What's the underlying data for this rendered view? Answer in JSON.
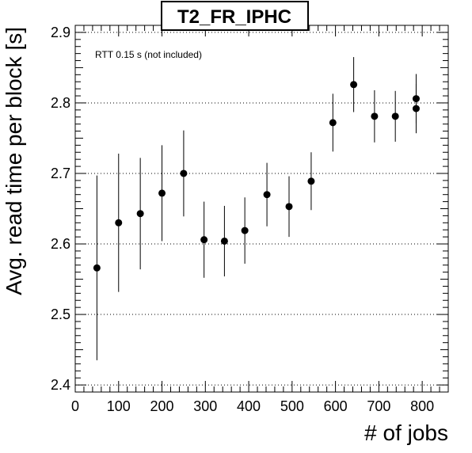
{
  "chart_data": {
    "type": "scatter",
    "title": "T2_FR_IPHC",
    "xlabel": "# of jobs",
    "ylabel": "Avg. read time per block [s]",
    "annotation": "RTT 0.15 s (not included)",
    "xlim": [
      0,
      860
    ],
    "ylim": [
      2.39,
      2.91
    ],
    "x_ticks": [
      0,
      100,
      200,
      300,
      400,
      500,
      600,
      700,
      800
    ],
    "y_ticks": [
      2.4,
      2.5,
      2.6,
      2.7,
      2.8,
      2.9
    ],
    "x_tick_labels": [
      "0",
      "100",
      "200",
      "300",
      "400",
      "500",
      "600",
      "700",
      "800"
    ],
    "y_tick_labels": [
      "2.4",
      "2.5",
      "2.6",
      "2.7",
      "2.8",
      "2.9"
    ],
    "grid": "horizontal dotted",
    "marker_color": "#000000",
    "points": [
      {
        "x": 50,
        "y": 2.566,
        "err": 0.131
      },
      {
        "x": 100,
        "y": 2.63,
        "err": 0.098
      },
      {
        "x": 150,
        "y": 2.643,
        "err": 0.079
      },
      {
        "x": 200,
        "y": 2.672,
        "err": 0.068
      },
      {
        "x": 250,
        "y": 2.7,
        "err": 0.061
      },
      {
        "x": 297,
        "y": 2.606,
        "err": 0.054
      },
      {
        "x": 344,
        "y": 2.604,
        "err": 0.05
      },
      {
        "x": 391,
        "y": 2.619,
        "err": 0.047
      },
      {
        "x": 442,
        "y": 2.67,
        "err": 0.045
      },
      {
        "x": 493,
        "y": 2.653,
        "err": 0.043
      },
      {
        "x": 544,
        "y": 2.689,
        "err": 0.041
      },
      {
        "x": 594,
        "y": 2.772,
        "err": 0.041
      },
      {
        "x": 642,
        "y": 2.826,
        "err": 0.039
      },
      {
        "x": 690,
        "y": 2.781,
        "err": 0.037
      },
      {
        "x": 738,
        "y": 2.781,
        "err": 0.036
      },
      {
        "x": 786,
        "y": 2.806,
        "err": 0.035
      },
      {
        "x": 786,
        "y": 2.792,
        "err": 0.035
      }
    ]
  }
}
